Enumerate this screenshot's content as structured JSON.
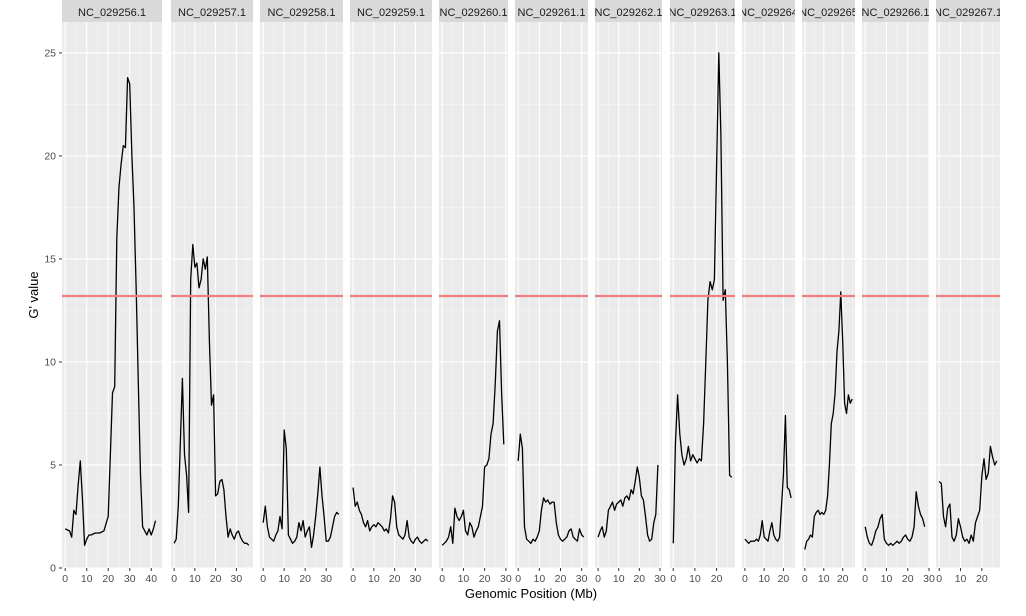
{
  "chart_data": {
    "type": "line",
    "xlabel": "Genomic Position (Mb)",
    "ylabel": "G' value",
    "ylim": [
      0,
      26.5
    ],
    "y_ticks": [
      0,
      5,
      10,
      15,
      20,
      25
    ],
    "threshold": 13.2,
    "threshold_color": "#f08080",
    "line_color": "#000000",
    "grid": true,
    "panels": [
      {
        "name": "NC_029256.1",
        "xlim": [
          -1.5,
          45
        ],
        "x_ticks": [
          0,
          10,
          20,
          30,
          40
        ],
        "x": [
          0,
          2,
          3,
          4,
          5,
          6,
          7,
          8,
          9,
          10,
          11,
          12,
          14,
          16,
          18,
          20,
          22,
          23,
          24,
          25,
          26,
          27,
          28,
          29,
          30,
          31,
          32,
          33,
          34,
          35,
          36,
          37,
          38,
          39,
          40,
          41,
          42
        ],
        "y": [
          1.9,
          1.8,
          1.5,
          2.8,
          2.6,
          4.0,
          5.2,
          3.4,
          1.1,
          1.4,
          1.6,
          1.6,
          1.7,
          1.7,
          1.8,
          2.5,
          8.5,
          8.8,
          16.0,
          18.5,
          19.6,
          20.5,
          20.4,
          23.8,
          23.5,
          20.0,
          17.5,
          13.5,
          9.0,
          4.5,
          2.0,
          1.8,
          1.6,
          1.9,
          1.6,
          1.9,
          2.3
        ]
      },
      {
        "name": "NC_029257.1",
        "xlim": [
          -1.5,
          38
        ],
        "x_ticks": [
          0,
          10,
          20,
          30
        ],
        "x": [
          0,
          1,
          2,
          3,
          4,
          5,
          6,
          7,
          8,
          9,
          10,
          11,
          12,
          13,
          14,
          15,
          16,
          17,
          18,
          19,
          20,
          21,
          22,
          23,
          24,
          25,
          26,
          27,
          28,
          29,
          30,
          31,
          32,
          33,
          34,
          35,
          36
        ],
        "y": [
          1.2,
          1.4,
          3.0,
          6.0,
          9.2,
          5.5,
          4.5,
          2.7,
          14.0,
          15.7,
          14.6,
          14.8,
          13.6,
          14.0,
          15.0,
          14.5,
          15.1,
          11.0,
          7.9,
          8.4,
          3.5,
          3.6,
          4.2,
          4.3,
          3.8,
          2.5,
          1.5,
          1.9,
          1.6,
          1.4,
          1.7,
          1.8,
          1.5,
          1.3,
          1.2,
          1.2,
          1.1
        ]
      },
      {
        "name": "NC_029258.1",
        "xlim": [
          -1.5,
          38
        ],
        "x_ticks": [
          0,
          10,
          20,
          30
        ],
        "x": [
          0,
          1,
          2,
          3,
          4,
          5,
          6,
          7,
          8,
          9,
          10,
          11,
          12,
          13,
          14,
          15,
          16,
          17,
          18,
          19,
          20,
          21,
          22,
          23,
          24,
          25,
          26,
          27,
          28,
          29,
          30,
          31,
          32,
          33,
          34,
          35,
          36
        ],
        "y": [
          2.2,
          3.0,
          2.0,
          1.5,
          1.4,
          1.3,
          1.6,
          1.8,
          2.5,
          1.9,
          6.7,
          5.8,
          1.6,
          1.4,
          1.2,
          1.3,
          1.5,
          2.2,
          1.8,
          2.3,
          1.5,
          1.8,
          2.0,
          1.0,
          1.6,
          2.5,
          3.6,
          4.9,
          3.5,
          2.5,
          1.3,
          1.3,
          1.5,
          2.0,
          2.5,
          2.7,
          2.6
        ]
      },
      {
        "name": "NC_029259.1",
        "xlim": [
          -1.5,
          38
        ],
        "x_ticks": [
          0,
          10,
          20,
          30
        ],
        "x": [
          0,
          1,
          2,
          3,
          4,
          5,
          6,
          7,
          8,
          9,
          10,
          11,
          12,
          13,
          14,
          15,
          16,
          17,
          18,
          19,
          20,
          21,
          22,
          23,
          24,
          25,
          26,
          27,
          28,
          29,
          30,
          31,
          32,
          33,
          34,
          35,
          36
        ],
        "y": [
          3.9,
          3.0,
          3.2,
          2.8,
          2.6,
          2.2,
          2.0,
          2.3,
          1.8,
          2.0,
          2.1,
          2.0,
          2.2,
          2.1,
          2.0,
          1.8,
          1.9,
          1.7,
          2.4,
          3.5,
          3.2,
          2.0,
          1.6,
          1.5,
          1.4,
          1.6,
          2.3,
          1.5,
          1.3,
          1.2,
          1.4,
          1.5,
          1.3,
          1.2,
          1.3,
          1.4,
          1.3
        ]
      },
      {
        "name": "NC_029260.1",
        "xlim": [
          -1.5,
          31
        ],
        "x_ticks": [
          0,
          10,
          20,
          30
        ],
        "x": [
          0,
          1,
          2,
          3,
          4,
          5,
          6,
          7,
          8,
          9,
          10,
          11,
          12,
          13,
          14,
          15,
          16,
          17,
          18,
          19,
          20,
          21,
          22,
          23,
          24,
          25,
          26,
          27,
          28,
          29
        ],
        "y": [
          1.1,
          1.2,
          1.3,
          1.5,
          2.0,
          1.2,
          2.9,
          2.5,
          2.3,
          2.5,
          2.8,
          1.8,
          1.6,
          2.2,
          2.0,
          1.5,
          1.8,
          2.0,
          2.5,
          3.0,
          4.9,
          5.0,
          5.3,
          6.5,
          7.0,
          9.0,
          11.5,
          12.0,
          8.5,
          6.0
        ]
      },
      {
        "name": "NC_029261.1",
        "xlim": [
          -1.5,
          33
        ],
        "x_ticks": [
          0,
          10,
          20,
          30
        ],
        "x": [
          0,
          1,
          2,
          3,
          4,
          5,
          6,
          7,
          8,
          9,
          10,
          11,
          12,
          13,
          14,
          15,
          16,
          17,
          18,
          19,
          20,
          21,
          22,
          23,
          24,
          25,
          26,
          27,
          28,
          29,
          30,
          31
        ],
        "y": [
          5.2,
          6.5,
          5.8,
          2.0,
          1.4,
          1.3,
          1.2,
          1.4,
          1.3,
          1.5,
          1.8,
          2.8,
          3.4,
          3.2,
          3.3,
          3.1,
          3.2,
          3.2,
          2.2,
          1.6,
          1.4,
          1.3,
          1.4,
          1.5,
          1.8,
          1.9,
          1.5,
          1.4,
          1.3,
          1.9,
          1.6,
          1.5
        ]
      },
      {
        "name": "NC_029262.1",
        "xlim": [
          -1.5,
          31
        ],
        "x_ticks": [
          0,
          10,
          20,
          30
        ],
        "x": [
          0,
          1,
          2,
          3,
          4,
          5,
          6,
          7,
          8,
          9,
          10,
          11,
          12,
          13,
          14,
          15,
          16,
          17,
          18,
          19,
          20,
          21,
          22,
          23,
          24,
          25,
          26,
          27,
          28,
          29
        ],
        "y": [
          1.5,
          1.8,
          2.0,
          1.5,
          1.8,
          2.8,
          3.0,
          3.2,
          2.8,
          3.1,
          3.2,
          3.3,
          3.0,
          3.4,
          3.5,
          3.3,
          3.8,
          3.6,
          4.2,
          4.9,
          4.4,
          3.5,
          3.3,
          2.5,
          1.6,
          1.3,
          1.4,
          2.2,
          2.6,
          5.0
        ]
      },
      {
        "name": "NC_029263.1",
        "xlim": [
          -1.5,
          28.5
        ],
        "x_ticks": [
          0,
          10,
          20
        ],
        "x": [
          0,
          1,
          2,
          3,
          4,
          5,
          6,
          7,
          8,
          9,
          10,
          11,
          12,
          13,
          14,
          15,
          16,
          17,
          18,
          19,
          20,
          21,
          22,
          23,
          24,
          25,
          26,
          27
        ],
        "y": [
          1.2,
          6.0,
          8.4,
          6.5,
          5.5,
          5.0,
          5.3,
          5.9,
          5.2,
          5.5,
          5.3,
          5.1,
          5.3,
          5.2,
          7.0,
          10.0,
          13.0,
          13.9,
          13.5,
          14.0,
          19.5,
          25.0,
          21.0,
          13.0,
          13.5,
          10.0,
          4.5,
          4.4
        ]
      },
      {
        "name": "NC_029264",
        "xlim": [
          -1.5,
          26
        ],
        "x_ticks": [
          0,
          10,
          20
        ],
        "x": [
          0,
          1,
          2,
          3,
          4,
          5,
          6,
          7,
          8,
          9,
          10,
          11,
          12,
          13,
          14,
          15,
          16,
          17,
          18,
          19,
          20,
          21,
          22,
          23,
          24
        ],
        "y": [
          1.4,
          1.3,
          1.2,
          1.3,
          1.3,
          1.3,
          1.4,
          1.3,
          1.6,
          2.3,
          1.5,
          1.4,
          1.3,
          1.8,
          2.2,
          1.6,
          1.4,
          1.3,
          1.5,
          3.0,
          4.5,
          7.4,
          3.9,
          3.8,
          3.4
        ]
      },
      {
        "name": "NC_029265",
        "xlim": [
          -1.5,
          26.5
        ],
        "x_ticks": [
          0,
          10,
          20
        ],
        "x": [
          0,
          1,
          2,
          3,
          4,
          5,
          6,
          7,
          8,
          9,
          10,
          11,
          12,
          13,
          14,
          15,
          16,
          17,
          18,
          19,
          20,
          21,
          22,
          23,
          24,
          25
        ],
        "y": [
          0.9,
          1.3,
          1.4,
          1.6,
          1.5,
          2.5,
          2.7,
          2.8,
          2.6,
          2.7,
          2.6,
          2.8,
          3.5,
          5.0,
          7.0,
          7.5,
          8.5,
          10.5,
          11.5,
          13.4,
          11.0,
          8.0,
          7.5,
          8.4,
          8.0,
          8.2
        ]
      },
      {
        "name": "NC_029266.1",
        "xlim": [
          -1.5,
          30
        ],
        "x_ticks": [
          0,
          10,
          20,
          30
        ],
        "x": [
          0,
          1,
          2,
          3,
          4,
          5,
          6,
          7,
          8,
          9,
          10,
          11,
          12,
          13,
          14,
          15,
          16,
          17,
          18,
          19,
          20,
          21,
          22,
          23,
          24,
          25,
          26,
          27,
          28
        ],
        "y": [
          2.0,
          1.5,
          1.2,
          1.1,
          1.4,
          1.8,
          2.0,
          2.4,
          2.6,
          1.4,
          1.2,
          1.1,
          1.2,
          1.1,
          1.2,
          1.3,
          1.2,
          1.3,
          1.5,
          1.6,
          1.4,
          1.3,
          1.5,
          2.0,
          3.7,
          3.0,
          2.6,
          2.4,
          2.0
        ]
      },
      {
        "name": "NC_029267.1",
        "xlim": [
          -1.5,
          28.5
        ],
        "x_ticks": [
          0,
          10,
          20
        ],
        "x": [
          0,
          1,
          2,
          3,
          4,
          5,
          6,
          7,
          8,
          9,
          10,
          11,
          12,
          13,
          14,
          15,
          16,
          17,
          18,
          19,
          20,
          21,
          22,
          23,
          24,
          25,
          26,
          27
        ],
        "y": [
          4.2,
          4.1,
          2.5,
          2.0,
          2.9,
          3.1,
          1.5,
          1.3,
          1.6,
          2.4,
          2.0,
          1.5,
          1.3,
          1.4,
          1.2,
          1.6,
          1.3,
          2.2,
          2.5,
          2.8,
          4.5,
          5.3,
          4.3,
          4.6,
          5.9,
          5.4,
          5.0,
          5.2
        ]
      }
    ]
  }
}
